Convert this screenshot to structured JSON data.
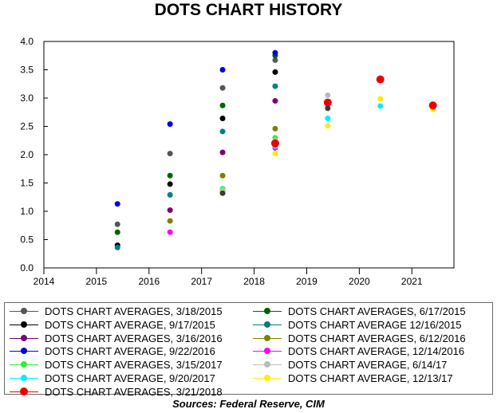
{
  "chart_data": {
    "type": "scatter",
    "title": "DOTS CHART HISTORY",
    "source": "Sources:  Federal Reserve, CIM",
    "xlim": [
      2014,
      2021.8
    ],
    "ylim": [
      0,
      4
    ],
    "x_ticks": [
      "2014",
      "2015",
      "2016",
      "2017",
      "2018",
      "2019",
      "2020",
      "2021"
    ],
    "y_ticks": [
      "0.0",
      "0.5",
      "1.0",
      "1.5",
      "2.0",
      "2.5",
      "3.0",
      "3.5",
      "4.0"
    ],
    "grid": false,
    "legend_position": "bottom",
    "series": [
      {
        "name": "DOTS CHART AVERAGES, 3/18/2015",
        "color": "#555555",
        "points": [
          [
            2015.4,
            0.77
          ],
          [
            2016.4,
            2.02
          ],
          [
            2017.4,
            3.18
          ],
          [
            2018.4,
            3.67
          ]
        ]
      },
      {
        "name": "DOTS CHART AVERAGES, 6/17/2015",
        "color": "#006400",
        "points": [
          [
            2015.4,
            0.63
          ],
          [
            2016.4,
            1.63
          ],
          [
            2017.4,
            2.87
          ],
          [
            2018.4,
            3.75
          ]
        ]
      },
      {
        "name": "DOTS CHART AVERAGE, 9/17/2015",
        "color": "#000000",
        "points": [
          [
            2015.4,
            0.4
          ],
          [
            2016.4,
            1.48
          ],
          [
            2017.4,
            2.64
          ],
          [
            2018.4,
            3.46
          ]
        ]
      },
      {
        "name": "DOTS CHART AVERAGE 12/16/2015",
        "color": "#008080",
        "points": [
          [
            2015.4,
            0.36
          ],
          [
            2016.4,
            1.29
          ],
          [
            2017.4,
            2.41
          ],
          [
            2018.4,
            3.21
          ]
        ]
      },
      {
        "name": "DOTS CHART AVERAGES, 3/16/2016",
        "color": "#7a007a",
        "points": [
          [
            2016.4,
            1.02
          ],
          [
            2017.4,
            2.04
          ],
          [
            2018.4,
            2.95
          ]
        ]
      },
      {
        "name": "DOTS CHART AVERAGES, 6/12/2016",
        "color": "#808000",
        "points": [
          [
            2016.4,
            0.83
          ],
          [
            2017.4,
            1.63
          ],
          [
            2018.4,
            2.46
          ]
        ]
      },
      {
        "name": "DOTS CHART AVERAGE, 9/22/2016",
        "color": "#0000dd",
        "points": [
          [
            2015.4,
            1.13
          ],
          [
            2016.4,
            2.54
          ],
          [
            2017.4,
            3.5
          ],
          [
            2018.4,
            3.8
          ]
        ]
      },
      {
        "name": "DOTS CHART AVERAGE, 12/14/2016",
        "color": "#ff00ff",
        "points": [
          [
            2016.4,
            0.63
          ],
          [
            2017.4,
            1.35
          ],
          [
            2018.4,
            2.12
          ]
        ]
      },
      {
        "name": "DOTS CHART AVERAGES, 3/15/2017",
        "color": "#33ee33",
        "points": [
          [
            2017.4,
            1.4
          ],
          [
            2018.4,
            2.3
          ]
        ]
      },
      {
        "name": "DOTS CHART AVERAGE, 6/14/17",
        "color": "#bbbbbb",
        "points": [
          [
            2017.4,
            1.38
          ],
          [
            2018.4,
            2.25
          ],
          [
            2019.4,
            3.05
          ]
        ]
      },
      {
        "name": "DOTS CHART AVERAGE, 9/20/2017",
        "color": "#00eeff",
        "points": [
          [
            2017.4,
            1.36
          ],
          [
            2018.4,
            2.15
          ],
          [
            2019.4,
            2.64
          ],
          [
            2020.4,
            2.86
          ]
        ]
      },
      {
        "name": "DOTS CHART AVERAGE, 12/13/17",
        "color": "#ffee00",
        "points": [
          [
            2017.4,
            1.34
          ],
          [
            2018.4,
            2.02
          ],
          [
            2019.4,
            2.51
          ],
          [
            2020.4,
            2.99
          ],
          [
            2021.4,
            2.8
          ]
        ]
      },
      {
        "name": "DOTS CHART AVERAGES, 3/21/2018",
        "color": "#ee0000",
        "big": true,
        "points": [
          [
            2018.4,
            2.2
          ],
          [
            2019.4,
            2.92
          ],
          [
            2020.4,
            3.33
          ],
          [
            2021.4,
            2.87
          ]
        ]
      },
      {
        "name": "",
        "color": "#3a3a3a",
        "hidden_in_legend": true,
        "points": [
          [
            2017.4,
            1.32
          ],
          [
            2019.4,
            2.82
          ]
        ]
      }
    ]
  }
}
